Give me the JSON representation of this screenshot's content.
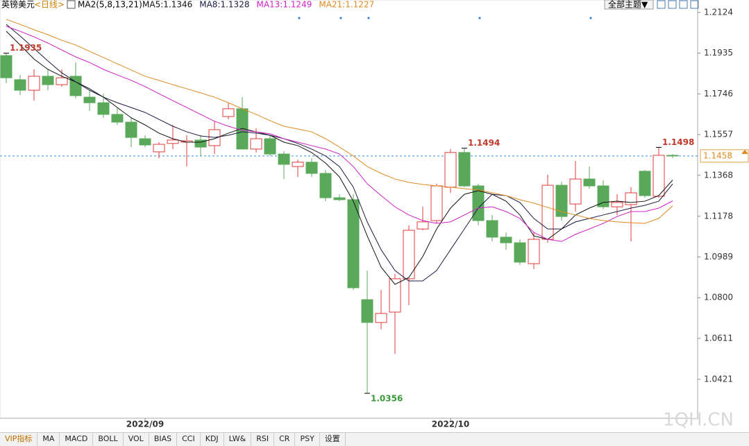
{
  "header": {
    "symbol": "英镑美元",
    "period": "<日线>",
    "indicator": "MA2(5,8,13,21)",
    "menu": "全部主题▼"
  },
  "chart_data": {
    "type": "candlestick",
    "categories": [
      null,
      null,
      null,
      null,
      null,
      null,
      null,
      null,
      null,
      null,
      "2022/09",
      null,
      null,
      null,
      null,
      null,
      null,
      null,
      null,
      null,
      null,
      null,
      null,
      null,
      null,
      null,
      null,
      null,
      null,
      null,
      null,
      null,
      "2022/10",
      null,
      null,
      null,
      null,
      null,
      null,
      null,
      null,
      null,
      null,
      null,
      null,
      null,
      null,
      null,
      null
    ],
    "open": [
      1.1924,
      1.1812,
      1.1763,
      1.1828,
      1.1789,
      1.1828,
      1.1731,
      1.1705,
      1.1651,
      1.1615,
      1.1538,
      1.1477,
      1.1516,
      1.1522,
      1.1532,
      1.1506,
      1.1641,
      1.1677,
      1.149,
      1.1538,
      1.1467,
      1.1409,
      1.1429,
      1.1377,
      1.1264,
      1.1255,
      1.0791,
      1.0685,
      1.0733,
      1.0888,
      1.1119,
      1.1158,
      1.1313,
      1.1474,
      1.1319,
      1.1158,
      1.1081,
      1.1055,
      1.0958,
      1.1071,
      1.1322,
      1.1235,
      1.1351,
      1.1319,
      1.1222,
      1.1232,
      1.1387,
      1.1271,
      1.1461
    ],
    "high": [
      1.1935,
      1.1834,
      1.186,
      1.186,
      1.186,
      1.1892,
      1.1763,
      1.1747,
      1.1683,
      1.1635,
      1.1554,
      1.1522,
      1.1602,
      1.1554,
      1.1554,
      1.1619,
      1.1705,
      1.1731,
      1.1586,
      1.1554,
      1.148,
      1.1441,
      1.1448,
      1.1393,
      1.128,
      1.128,
      1.0926,
      1.0836,
      1.091,
      1.1136,
      1.1222,
      1.1329,
      1.149,
      1.1494,
      1.1329,
      1.1184,
      1.1103,
      1.1071,
      1.1103,
      1.1371,
      1.1338,
      1.1435,
      1.1409,
      1.1345,
      1.128,
      1.1313,
      1.1393,
      1.1498,
      1.1467
    ],
    "low": [
      1.1796,
      1.1741,
      1.1715,
      1.1763,
      1.178,
      1.1725,
      1.1667,
      1.1635,
      1.1602,
      1.1499,
      1.1499,
      1.1448,
      1.149,
      1.1409,
      1.1458,
      1.1467,
      1.1628,
      1.149,
      1.1474,
      1.1458,
      1.1351,
      1.1361,
      1.1361,
      1.1248,
      1.1248,
      1.0836,
      1.0356,
      1.0653,
      1.054,
      1.0765,
      1.1113,
      1.1145,
      1.1287,
      1.1313,
      1.1136,
      1.1061,
      1.1023,
      1.0952,
      1.0933,
      1.1055,
      1.1158,
      1.12,
      1.1306,
      1.121,
      1.1184,
      1.1061,
      1.1264,
      1.1264,
      1.1448
    ],
    "close": [
      1.1821,
      1.1763,
      1.1828,
      1.1789,
      1.1821,
      1.1738,
      1.1705,
      1.1651,
      1.1615,
      1.1544,
      1.1509,
      1.1512,
      1.1532,
      1.1528,
      1.1499,
      1.158,
      1.1677,
      1.149,
      1.1538,
      1.1467,
      1.1419,
      1.1429,
      1.1377,
      1.1264,
      1.1255,
      1.0846,
      1.0685,
      1.0727,
      1.0888,
      1.1113,
      1.1152,
      1.1319,
      1.1474,
      1.1319,
      1.1158,
      1.1081,
      1.1055,
      1.0965,
      1.1071,
      1.1322,
      1.1177,
      1.1351,
      1.1319,
      1.1222,
      1.1242,
      1.1287,
      1.1274,
      1.1461,
      1.1458
    ],
    "up_color": "#e0393b",
    "down_color": "#5aa85a",
    "series": [
      {
        "name": "MA5:1.1346",
        "color": "#111111",
        "values": [
          1.2037,
          1.1973,
          1.1908,
          1.186,
          1.1828,
          1.1802,
          1.177,
          1.1731,
          1.1683,
          1.1635,
          1.1602,
          1.1564,
          1.1538,
          1.1522,
          1.1522,
          1.1538,
          1.1564,
          1.1586,
          1.157,
          1.1554,
          1.1522,
          1.1506,
          1.1474,
          1.1425,
          1.1361,
          1.1248,
          1.1087,
          1.0942,
          1.0862,
          1.0894,
          1.0991,
          1.1119,
          1.1216,
          1.128,
          1.1297,
          1.128,
          1.1248,
          1.1184,
          1.1087,
          1.1071,
          1.1119,
          1.1184,
          1.1216,
          1.1242,
          1.1248,
          1.1242,
          1.1248,
          1.1274,
          1.1346
        ]
      },
      {
        "name": "MA8:1.1328",
        "color": "#1a1a40",
        "values": [
          1.2069,
          1.2015,
          1.1957,
          1.1899,
          1.1844,
          1.1802,
          1.1763,
          1.1731,
          1.1705,
          1.1683,
          1.166,
          1.1628,
          1.1596,
          1.157,
          1.1551,
          1.1544,
          1.1554,
          1.157,
          1.1564,
          1.1554,
          1.1538,
          1.1516,
          1.149,
          1.1458,
          1.1409,
          1.1313,
          1.1152,
          1.1023,
          1.0926,
          1.0878,
          1.0878,
          1.0926,
          1.1023,
          1.1119,
          1.1216,
          1.128,
          1.1274,
          1.1242,
          1.1168,
          1.1119,
          1.1119,
          1.1152,
          1.1168,
          1.1184,
          1.12,
          1.1216,
          1.1229,
          1.1248,
          1.1328
        ]
      },
      {
        "name": "MA13:1.1249",
        "color": "#d020c8",
        "values": [
          1.206,
          1.2037,
          1.2011,
          1.1982,
          1.195,
          1.1918,
          1.1892,
          1.186,
          1.1834,
          1.1809,
          1.178,
          1.1747,
          1.1715,
          1.1683,
          1.1651,
          1.1619,
          1.1596,
          1.1577,
          1.157,
          1.1561,
          1.1538,
          1.1522,
          1.1506,
          1.149,
          1.1467,
          1.1409,
          1.1329,
          1.1274,
          1.1222,
          1.1184,
          1.1158,
          1.1145,
          1.1152,
          1.1184,
          1.1216,
          1.1222,
          1.12,
          1.1168,
          1.1103,
          1.1071,
          1.1061,
          1.1094,
          1.1119,
          1.1145,
          1.1177,
          1.12,
          1.12,
          1.1216,
          1.1249
        ]
      },
      {
        "name": "MA21:1.1227",
        "color": "#e08a1e",
        "values": [
          1.2092,
          1.2069,
          1.2044,
          1.2021,
          1.1995,
          1.1973,
          1.1944,
          1.1915,
          1.1886,
          1.1857,
          1.1828,
          1.1809,
          1.1789,
          1.177,
          1.1751,
          1.1731,
          1.1705,
          1.1677,
          1.1651,
          1.1622,
          1.1596,
          1.1583,
          1.157,
          1.1538,
          1.1499,
          1.1458,
          1.1409,
          1.1377,
          1.1351,
          1.1335,
          1.1326,
          1.1319,
          1.1313,
          1.1306,
          1.13,
          1.1287,
          1.1274,
          1.1255,
          1.1239,
          1.1219,
          1.12,
          1.1184,
          1.1168,
          1.1158,
          1.1152,
          1.1148,
          1.1145,
          1.1168,
          1.1227
        ]
      }
    ],
    "ylim": [
      1.025,
      1.2182
    ],
    "yticks": [
      1.2124,
      1.1935,
      1.1746,
      1.1557,
      1.1368,
      1.1178,
      1.0989,
      {
        "value": 1.08,
        "label": "1.0800"
      },
      1.0611,
      1.0421
    ],
    "annotations": [
      {
        "index": 0,
        "value": 1.1935,
        "kind": "high"
      },
      {
        "index": 33,
        "value": 1.1494,
        "kind": "high"
      },
      {
        "index": 47,
        "value": 1.1498,
        "kind": "high"
      },
      {
        "index": 26,
        "value": 1.0356,
        "kind": "low"
      }
    ],
    "current": 1.1458
  },
  "watermark": "1QH.CN",
  "tabs": [
    "VIP指标",
    "MA",
    "MACD",
    "BOLL",
    "VOL",
    "BIAS",
    "CCI",
    "KDJ",
    "LW&",
    "RSI",
    "CR",
    "PSY",
    "设置"
  ]
}
